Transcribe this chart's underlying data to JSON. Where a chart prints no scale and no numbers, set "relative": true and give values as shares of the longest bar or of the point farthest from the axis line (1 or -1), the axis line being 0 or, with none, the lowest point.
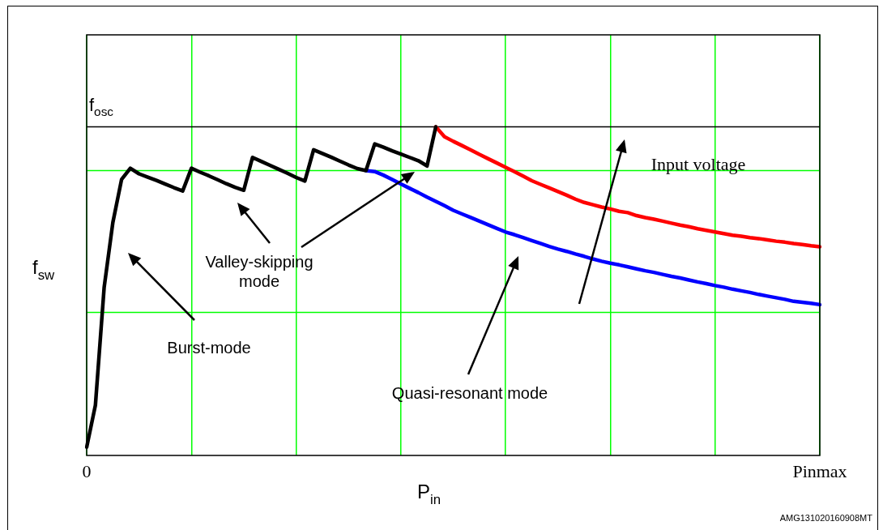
{
  "chart_data": {
    "type": "line",
    "relative": true,
    "xlabel": "P$_{in}$",
    "ylabel": "f$_{sw}$",
    "categories": [
      "0",
      null,
      null,
      null,
      null,
      null,
      null,
      null,
      null,
      null,
      null,
      null,
      null,
      null,
      null,
      null,
      null,
      null,
      null,
      null,
      null,
      null,
      null,
      null,
      null,
      null,
      null,
      null,
      null,
      null,
      null,
      null,
      null,
      null,
      null,
      null,
      null,
      null,
      null,
      null,
      null,
      null,
      null,
      null,
      null,
      null,
      null,
      null,
      null,
      null,
      null,
      null,
      null,
      null,
      null,
      null,
      null,
      null,
      null,
      null,
      null,
      null,
      null,
      null,
      null,
      null,
      null,
      null,
      null,
      null,
      null,
      null,
      null,
      null,
      null,
      null,
      null,
      null,
      null,
      null,
      null,
      null,
      null,
      null,
      "Pinmax"
    ],
    "grid": "x",
    "legend": false,
    "ref_lines": [
      {
        "axis": "y",
        "value": 1,
        "label": "f$_{osc}$",
        "color": "#000000"
      },
      {
        "axis": "y",
        "value": 0.867,
        "label": null,
        "color": "#00ff00"
      },
      {
        "axis": "y",
        "value": 0.435,
        "label": null,
        "color": "#00ff00"
      }
    ],
    "series": [
      {
        "color": "#000000",
        "values": [
          0.025,
          0.153,
          0.511,
          0.709,
          0.84,
          0.874,
          0.857,
          0.847,
          0.837,
          0.826,
          0.815,
          0.805,
          0.874,
          0.862,
          0.851,
          0.839,
          0.827,
          0.816,
          0.807,
          0.907,
          0.895,
          0.883,
          0.871,
          0.859,
          0.846,
          0.835,
          0.93,
          0.919,
          0.908,
          0.896,
          0.884,
          0.873,
          0.867,
          0.948,
          0.938,
          0.927,
          0.917,
          0.907,
          0.897,
          0.881,
          1.0,
          null,
          null,
          null,
          null,
          null,
          null,
          null,
          null,
          null,
          null,
          null,
          null,
          null,
          null,
          null,
          null,
          null,
          null,
          null,
          null,
          null,
          null,
          null,
          null,
          null,
          null,
          null,
          null,
          null,
          null,
          null,
          null,
          null,
          null,
          null,
          null,
          null,
          null,
          null,
          null,
          null,
          null,
          null,
          null
        ]
      },
      {
        "color": "#ff0000",
        "values": [
          null,
          null,
          null,
          null,
          null,
          null,
          null,
          null,
          null,
          null,
          null,
          null,
          null,
          null,
          null,
          null,
          null,
          null,
          null,
          null,
          null,
          null,
          null,
          null,
          null,
          null,
          null,
          null,
          null,
          null,
          null,
          null,
          null,
          null,
          null,
          null,
          null,
          null,
          null,
          null,
          1.0,
          0.97,
          0.956,
          0.943,
          0.93,
          0.916,
          0.903,
          0.89,
          0.877,
          0.864,
          0.85,
          0.836,
          0.825,
          0.814,
          0.803,
          0.792,
          0.78,
          0.77,
          0.763,
          0.756,
          0.75,
          0.743,
          0.739,
          0.73,
          0.724,
          0.719,
          0.713,
          0.707,
          0.701,
          0.696,
          0.69,
          0.685,
          0.68,
          0.675,
          0.67,
          0.667,
          0.663,
          0.66,
          0.656,
          0.652,
          0.649,
          0.645,
          0.642,
          0.638,
          0.635
        ]
      },
      {
        "color": "#0000ff",
        "values": [
          null,
          null,
          null,
          null,
          null,
          null,
          null,
          null,
          null,
          null,
          null,
          null,
          null,
          null,
          null,
          null,
          null,
          null,
          null,
          null,
          null,
          null,
          null,
          null,
          null,
          null,
          null,
          null,
          null,
          null,
          null,
          null,
          0.867,
          0.864,
          0.853,
          0.84,
          0.826,
          0.813,
          0.8,
          0.786,
          0.773,
          0.76,
          0.746,
          0.735,
          0.724,
          0.713,
          0.702,
          0.691,
          0.68,
          0.672,
          0.663,
          0.654,
          0.645,
          0.636,
          0.628,
          0.621,
          0.613,
          0.606,
          0.598,
          0.591,
          0.585,
          0.58,
          0.574,
          0.568,
          0.562,
          0.557,
          0.551,
          0.545,
          0.54,
          0.534,
          0.528,
          0.523,
          0.517,
          0.512,
          0.506,
          0.501,
          0.496,
          0.49,
          0.485,
          0.48,
          0.475,
          0.469,
          0.466,
          0.463,
          0.459
        ]
      }
    ],
    "annotations": [
      "Burst-mode",
      "Valley-skipping\nmode",
      "Quasi-resonant mode",
      "Input voltage",
      "AMG131020160908MT"
    ]
  }
}
